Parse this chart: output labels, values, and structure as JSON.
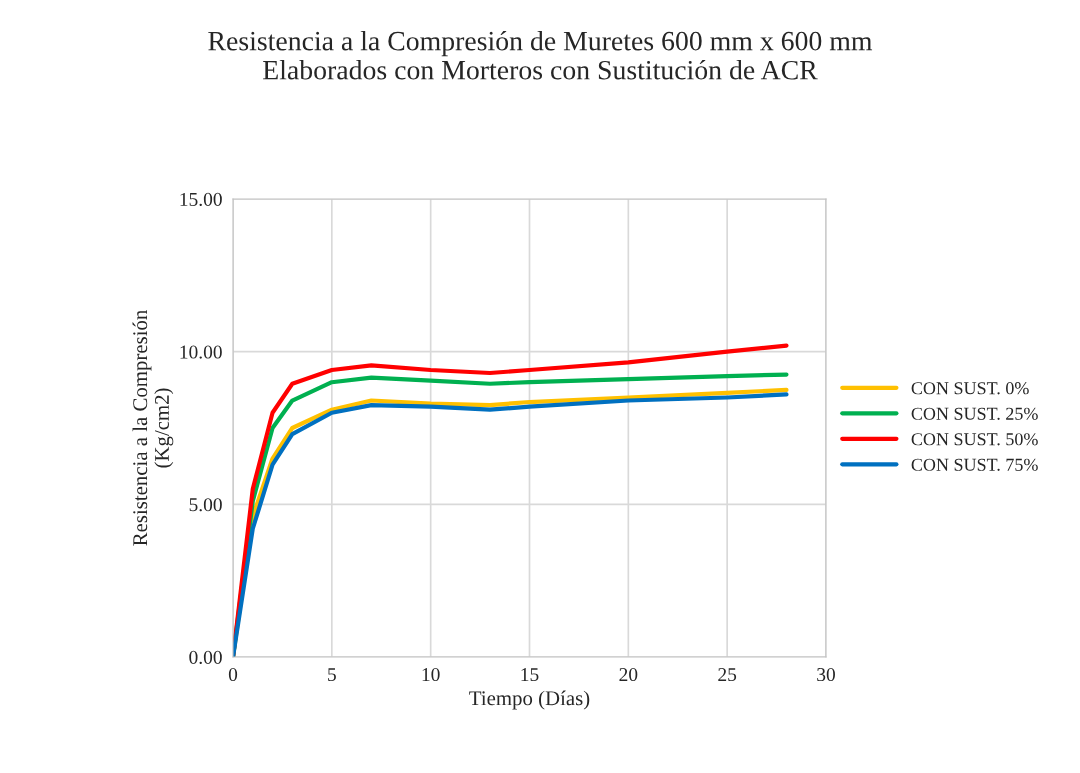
{
  "chart_data": {
    "type": "line",
    "title": "Resistencia a la Compresión de Muretes 600 mm x 600 mm\nElaborados con Morteros con Sustitución de ACR",
    "xlabel": "Tiempo (Días)",
    "ylabel": "Resistencia a la Compresión\n(Kg/cm2)",
    "x": [
      0,
      1,
      2,
      3,
      5,
      7,
      10,
      13,
      15,
      20,
      25,
      28
    ],
    "series": [
      {
        "name": "CON SUST. 0%",
        "color": "#ffc000",
        "values": [
          0,
          4.6,
          6.5,
          7.5,
          8.1,
          8.4,
          8.3,
          8.25,
          8.35,
          8.5,
          8.65,
          8.75
        ]
      },
      {
        "name": "CON SUST. 25%",
        "color": "#00b050",
        "values": [
          0,
          5.1,
          7.5,
          8.4,
          9.0,
          9.15,
          9.05,
          8.95,
          9.0,
          9.1,
          9.2,
          9.25
        ]
      },
      {
        "name": "CON SUST. 50%",
        "color": "#ff0000",
        "values": [
          0,
          5.5,
          8.0,
          8.95,
          9.4,
          9.55,
          9.4,
          9.3,
          9.4,
          9.65,
          10.0,
          10.2
        ]
      },
      {
        "name": "CON SUST. 75%",
        "color": "#0070c0",
        "values": [
          0,
          4.2,
          6.3,
          7.3,
          8.0,
          8.25,
          8.2,
          8.1,
          8.2,
          8.4,
          8.5,
          8.6
        ]
      }
    ],
    "xlim": [
      0,
      30
    ],
    "xticks": [
      0,
      5,
      10,
      15,
      20,
      25,
      30
    ],
    "ylim": [
      0,
      15
    ],
    "yticks": [
      {
        "value": 0,
        "label": "0.00"
      },
      {
        "value": 5,
        "label": "5.00"
      },
      {
        "value": 10,
        "label": "10.00"
      },
      {
        "value": 15,
        "label": "15.00"
      }
    ],
    "grid": true,
    "legend": "right",
    "marker": "none",
    "line_style": "solid"
  }
}
